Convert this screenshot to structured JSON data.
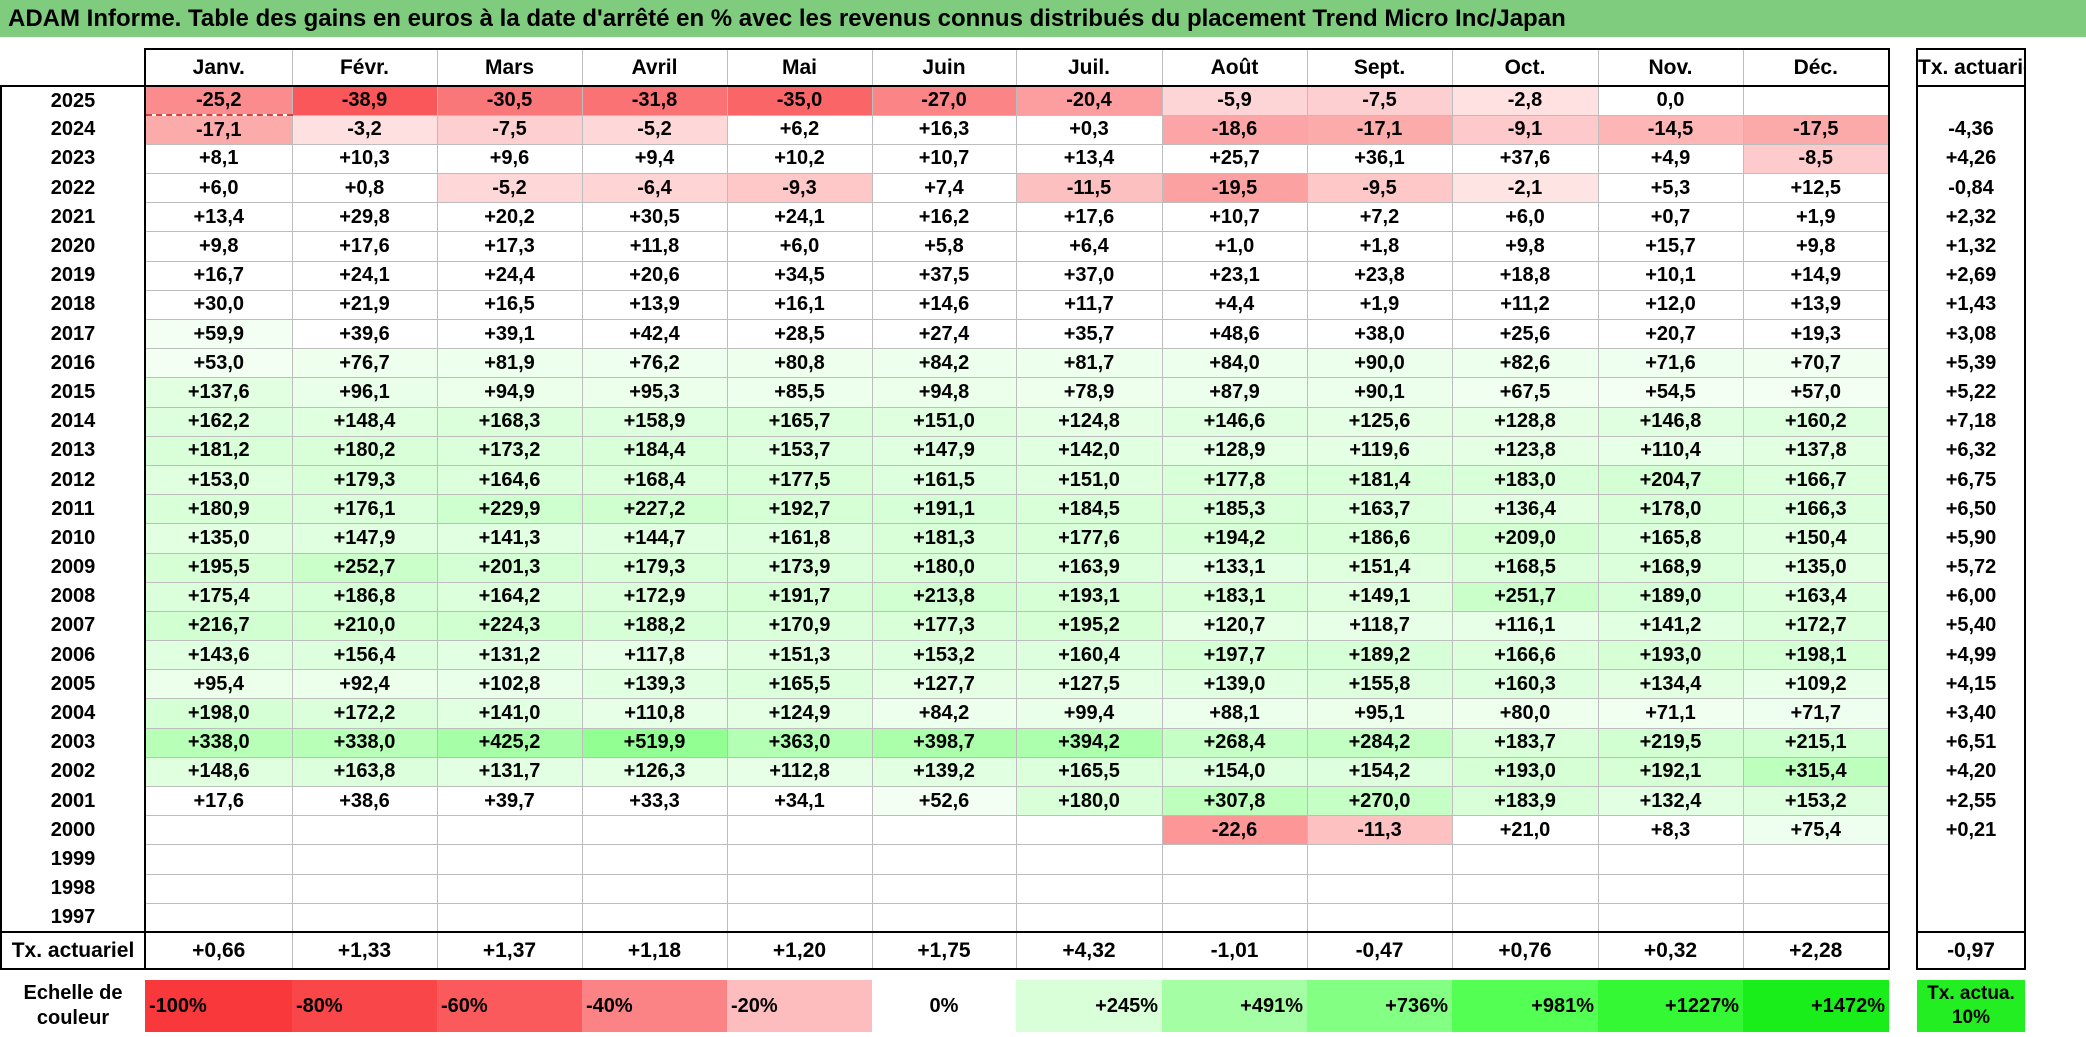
{
  "title": "ADAM Informe. Table des gains en euros à la date d'arrêté en % avec les revenus connus distribués du placement Trend Micro Inc/Japan",
  "months": [
    "Janv.",
    "Févr.",
    "Mars",
    "Avril",
    "Mai",
    "Juin",
    "Juil.",
    "Août",
    "Sept.",
    "Oct.",
    "Nov.",
    "Déc."
  ],
  "actuarial_header": "Tx. actuariel",
  "rows": [
    {
      "year": "2025",
      "values": [
        "-25,2",
        "-38,9",
        "-30,5",
        "-31,8",
        "-35,0",
        "-27,0",
        "-20,4",
        "-5,9",
        "-7,5",
        "-2,8",
        "0,0",
        ""
      ],
      "rate": ""
    },
    {
      "year": "2024",
      "values": [
        "-17,1",
        "-3,2",
        "-7,5",
        "-5,2",
        "+6,2",
        "+16,3",
        "+0,3",
        "-18,6",
        "-17,1",
        "-9,1",
        "-14,5",
        "-17,5"
      ],
      "rate": "-4,36"
    },
    {
      "year": "2023",
      "values": [
        "+8,1",
        "+10,3",
        "+9,6",
        "+9,4",
        "+10,2",
        "+10,7",
        "+13,4",
        "+25,7",
        "+36,1",
        "+37,6",
        "+4,9",
        "-8,5"
      ],
      "rate": "+4,26"
    },
    {
      "year": "2022",
      "values": [
        "+6,0",
        "+0,8",
        "-5,2",
        "-6,4",
        "-9,3",
        "+7,4",
        "-11,5",
        "-19,5",
        "-9,5",
        "-2,1",
        "+5,3",
        "+12,5"
      ],
      "rate": "-0,84"
    },
    {
      "year": "2021",
      "values": [
        "+13,4",
        "+29,8",
        "+20,2",
        "+30,5",
        "+24,1",
        "+16,2",
        "+17,6",
        "+10,7",
        "+7,2",
        "+6,0",
        "+0,7",
        "+1,9"
      ],
      "rate": "+2,32"
    },
    {
      "year": "2020",
      "values": [
        "+9,8",
        "+17,6",
        "+17,3",
        "+11,8",
        "+6,0",
        "+5,8",
        "+6,4",
        "+1,0",
        "+1,8",
        "+9,8",
        "+15,7",
        "+9,8"
      ],
      "rate": "+1,32"
    },
    {
      "year": "2019",
      "values": [
        "+16,7",
        "+24,1",
        "+24,4",
        "+20,6",
        "+34,5",
        "+37,5",
        "+37,0",
        "+23,1",
        "+23,8",
        "+18,8",
        "+10,1",
        "+14,9"
      ],
      "rate": "+2,69"
    },
    {
      "year": "2018",
      "values": [
        "+30,0",
        "+21,9",
        "+16,5",
        "+13,9",
        "+16,1",
        "+14,6",
        "+11,7",
        "+4,4",
        "+1,9",
        "+11,2",
        "+12,0",
        "+13,9"
      ],
      "rate": "+1,43"
    },
    {
      "year": "2017",
      "values": [
        "+59,9",
        "+39,6",
        "+39,1",
        "+42,4",
        "+28,5",
        "+27,4",
        "+35,7",
        "+48,6",
        "+38,0",
        "+25,6",
        "+20,7",
        "+19,3"
      ],
      "rate": "+3,08"
    },
    {
      "year": "2016",
      "values": [
        "+53,0",
        "+76,7",
        "+81,9",
        "+76,2",
        "+80,8",
        "+84,2",
        "+81,7",
        "+84,0",
        "+90,0",
        "+82,6",
        "+71,6",
        "+70,7"
      ],
      "rate": "+5,39"
    },
    {
      "year": "2015",
      "values": [
        "+137,6",
        "+96,1",
        "+94,9",
        "+95,3",
        "+85,5",
        "+94,8",
        "+78,9",
        "+87,9",
        "+90,1",
        "+67,5",
        "+54,5",
        "+57,0"
      ],
      "rate": "+5,22"
    },
    {
      "year": "2014",
      "values": [
        "+162,2",
        "+148,4",
        "+168,3",
        "+158,9",
        "+165,7",
        "+151,0",
        "+124,8",
        "+146,6",
        "+125,6",
        "+128,8",
        "+146,8",
        "+160,2"
      ],
      "rate": "+7,18"
    },
    {
      "year": "2013",
      "values": [
        "+181,2",
        "+180,2",
        "+173,2",
        "+184,4",
        "+153,7",
        "+147,9",
        "+142,0",
        "+128,9",
        "+119,6",
        "+123,8",
        "+110,4",
        "+137,8"
      ],
      "rate": "+6,32"
    },
    {
      "year": "2012",
      "values": [
        "+153,0",
        "+179,3",
        "+164,6",
        "+168,4",
        "+177,5",
        "+161,5",
        "+151,0",
        "+177,8",
        "+181,4",
        "+183,0",
        "+204,7",
        "+166,7"
      ],
      "rate": "+6,75"
    },
    {
      "year": "2011",
      "values": [
        "+180,9",
        "+176,1",
        "+229,9",
        "+227,2",
        "+192,7",
        "+191,1",
        "+184,5",
        "+185,3",
        "+163,7",
        "+136,4",
        "+178,0",
        "+166,3"
      ],
      "rate": "+6,50"
    },
    {
      "year": "2010",
      "values": [
        "+135,0",
        "+147,9",
        "+141,3",
        "+144,7",
        "+161,8",
        "+181,3",
        "+177,6",
        "+194,2",
        "+186,6",
        "+209,0",
        "+165,8",
        "+150,4"
      ],
      "rate": "+5,90"
    },
    {
      "year": "2009",
      "values": [
        "+195,5",
        "+252,7",
        "+201,3",
        "+179,3",
        "+173,9",
        "+180,0",
        "+163,9",
        "+133,1",
        "+151,4",
        "+168,5",
        "+168,9",
        "+135,0"
      ],
      "rate": "+5,72"
    },
    {
      "year": "2008",
      "values": [
        "+175,4",
        "+186,8",
        "+164,2",
        "+172,9",
        "+191,7",
        "+213,8",
        "+193,1",
        "+183,1",
        "+149,1",
        "+251,7",
        "+189,0",
        "+163,4"
      ],
      "rate": "+6,00"
    },
    {
      "year": "2007",
      "values": [
        "+216,7",
        "+210,0",
        "+224,3",
        "+188,2",
        "+170,9",
        "+177,3",
        "+195,2",
        "+120,7",
        "+118,7",
        "+116,1",
        "+141,2",
        "+172,7"
      ],
      "rate": "+5,40"
    },
    {
      "year": "2006",
      "values": [
        "+143,6",
        "+156,4",
        "+131,2",
        "+117,8",
        "+151,3",
        "+153,2",
        "+160,4",
        "+197,7",
        "+189,2",
        "+166,6",
        "+193,0",
        "+198,1"
      ],
      "rate": "+4,99"
    },
    {
      "year": "2005",
      "values": [
        "+95,4",
        "+92,4",
        "+102,8",
        "+139,3",
        "+165,5",
        "+127,7",
        "+127,5",
        "+139,0",
        "+155,8",
        "+160,3",
        "+134,4",
        "+109,2"
      ],
      "rate": "+4,15"
    },
    {
      "year": "2004",
      "values": [
        "+198,0",
        "+172,2",
        "+141,0",
        "+110,8",
        "+124,9",
        "+84,2",
        "+99,4",
        "+88,1",
        "+95,1",
        "+80,0",
        "+71,1",
        "+71,7"
      ],
      "rate": "+3,40"
    },
    {
      "year": "2003",
      "values": [
        "+338,0",
        "+338,0",
        "+425,2",
        "+519,9",
        "+363,0",
        "+398,7",
        "+394,2",
        "+268,4",
        "+284,2",
        "+183,7",
        "+219,5",
        "+215,1"
      ],
      "rate": "+6,51"
    },
    {
      "year": "2002",
      "values": [
        "+148,6",
        "+163,8",
        "+131,7",
        "+126,3",
        "+112,8",
        "+139,2",
        "+165,5",
        "+154,0",
        "+154,2",
        "+193,0",
        "+192,1",
        "+315,4"
      ],
      "rate": "+4,20"
    },
    {
      "year": "2001",
      "values": [
        "+17,6",
        "+38,6",
        "+39,7",
        "+33,3",
        "+34,1",
        "+52,6",
        "+180,0",
        "+307,8",
        "+270,0",
        "+183,9",
        "+132,4",
        "+153,2"
      ],
      "rate": "+2,55"
    },
    {
      "year": "2000",
      "values": [
        "",
        "",
        "",
        "",
        "",
        "",
        "",
        "-22,6",
        "-11,3",
        "+21,0",
        "+8,3",
        "+75,4"
      ],
      "rate": "+0,21"
    },
    {
      "year": "1999",
      "values": [
        "",
        "",
        "",
        "",
        "",
        "",
        "",
        "",
        "",
        "",
        "",
        ""
      ],
      "rate": ""
    },
    {
      "year": "1998",
      "values": [
        "",
        "",
        "",
        "",
        "",
        "",
        "",
        "",
        "",
        "",
        "",
        ""
      ],
      "rate": ""
    },
    {
      "year": "1997",
      "values": [
        "",
        "",
        "",
        "",
        "",
        "",
        "",
        "",
        "",
        "",
        "",
        ""
      ],
      "rate": ""
    }
  ],
  "footer": {
    "label": "Tx. actuariel",
    "values": [
      "+0,66",
      "+1,33",
      "+1,37",
      "+1,18",
      "+1,20",
      "+1,75",
      "+4,32",
      "-1,01",
      "-0,47",
      "+0,76",
      "+0,32",
      "+2,28"
    ],
    "rate": "-0,97"
  },
  "scale": {
    "label": "Echelle de couleur",
    "steps": [
      {
        "text": "-100%",
        "color": "#f8383a"
      },
      {
        "text": "-80%",
        "color": "#f94749"
      },
      {
        "text": "-60%",
        "color": "#fa5a5c"
      },
      {
        "text": "-40%",
        "color": "#fb8385"
      },
      {
        "text": "-20%",
        "color": "#fdbdbf"
      },
      {
        "text": "0%",
        "color": "#ffffff"
      },
      {
        "text": "+245%",
        "color": "#d9ffd9"
      },
      {
        "text": "+491%",
        "color": "#a4ffa4"
      },
      {
        "text": "+736%",
        "color": "#83ff83"
      },
      {
        "text": "+981%",
        "color": "#53ff53"
      },
      {
        "text": "+1227%",
        "color": "#33f833"
      },
      {
        "text": "+1472%",
        "color": "#1aee1a"
      }
    ],
    "rate_label": "Tx. actua. 10%",
    "rate_color": "#22ee22"
  }
}
